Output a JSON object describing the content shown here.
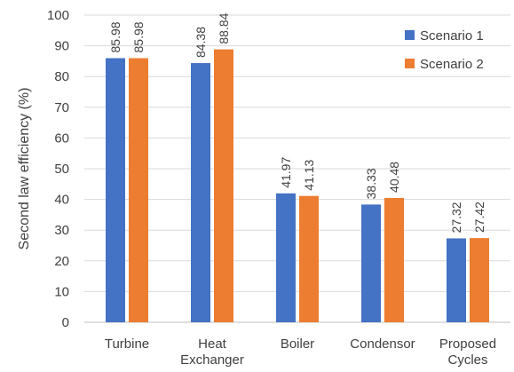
{
  "chart_data": {
    "type": "bar",
    "title": "",
    "xlabel": "",
    "ylabel": "Second law efficiency (%)",
    "ylim": [
      0,
      100
    ],
    "yticks": [
      0,
      10,
      20,
      30,
      40,
      50,
      60,
      70,
      80,
      90,
      100
    ],
    "grid": true,
    "legend_position": "top-right",
    "categories": [
      [
        "Turbine"
      ],
      [
        "Heat",
        "Exchanger"
      ],
      [
        "Boiler"
      ],
      [
        "Condensor"
      ],
      [
        "Proposed",
        "Cycles"
      ]
    ],
    "series": [
      {
        "name": "Scenario 1",
        "color": "#4472C4",
        "values": [
          85.98,
          84.38,
          41.97,
          38.33,
          27.32
        ]
      },
      {
        "name": "Scenario 2",
        "color": "#ED7D31",
        "values": [
          85.98,
          88.84,
          41.13,
          40.48,
          27.42
        ]
      }
    ]
  }
}
